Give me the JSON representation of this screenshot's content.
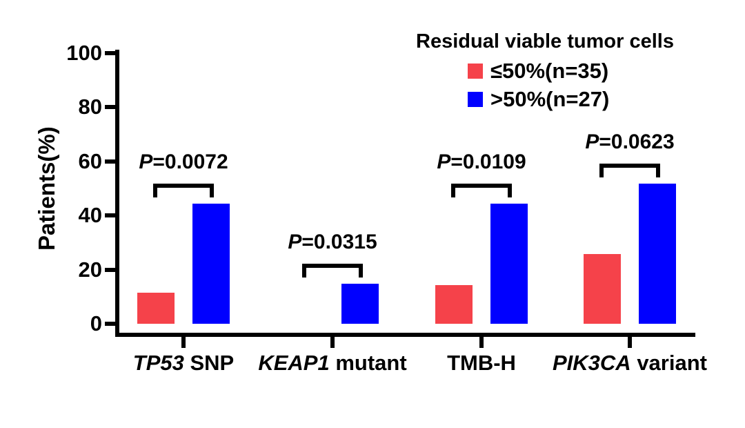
{
  "figure": {
    "background": "#FFFFFF",
    "axis_color": "#000000"
  },
  "chart_data": {
    "type": "bar",
    "title": "",
    "xlabel": "",
    "ylabel": "Patients(%)",
    "ylim": [
      0,
      100
    ],
    "yticks": [
      0,
      20,
      40,
      60,
      80,
      100
    ],
    "grid": false,
    "legend_position": "top-right",
    "legend_title": "Residual viable tumor cells",
    "categories": [
      "TP53 SNP",
      "KEAP1 mutant",
      "TMB-H",
      "PIK3CA variant"
    ],
    "category_labels": [
      {
        "italic": "TP53",
        "rest": " SNP"
      },
      {
        "italic": "KEAP1",
        "rest": " mutant"
      },
      {
        "italic": "",
        "rest": "TMB-H"
      },
      {
        "italic": "PIK3CA",
        "rest": " variant"
      }
    ],
    "series": [
      {
        "name": "≤50%(n=35)",
        "color": "#F5424A",
        "values": [
          11.4,
          0,
          14.3,
          25.7
        ]
      },
      {
        "name": ">50%(n=27)",
        "color": "#0000FF",
        "values": [
          44.4,
          14.8,
          44.4,
          51.9
        ]
      }
    ],
    "p_values": [
      {
        "italic": "P",
        "rest": "=0.0072"
      },
      {
        "italic": "P",
        "rest": "=0.0315"
      },
      {
        "italic": "P",
        "rest": "=0.0109"
      },
      {
        "italic": "P",
        "rest": "=0.0623"
      }
    ]
  }
}
